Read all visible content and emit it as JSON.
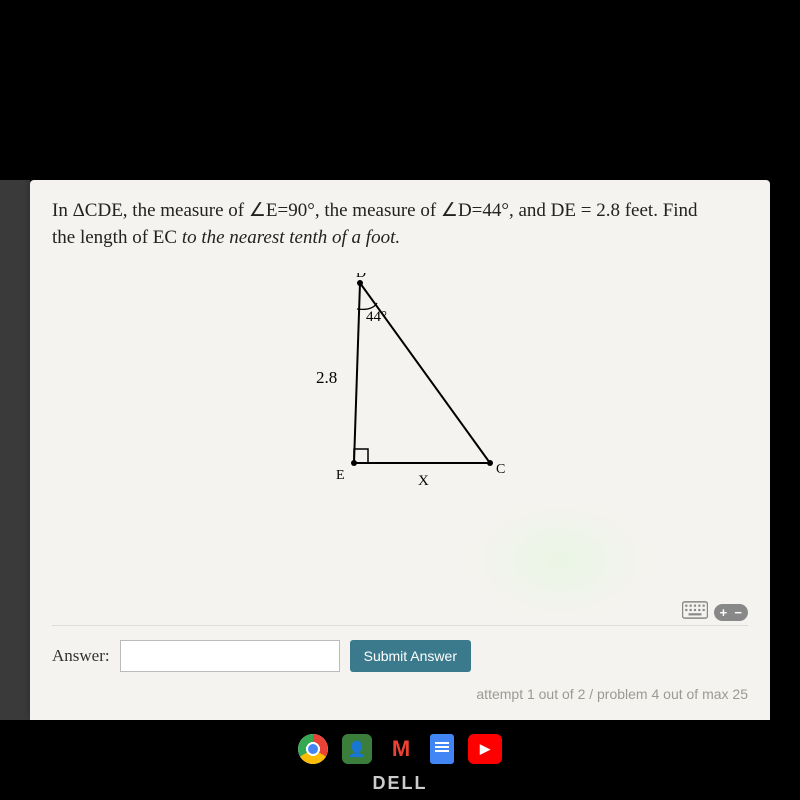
{
  "problem": {
    "line1_prefix": "In ΔCDE, the measure of ∠E=90°, the measure of ∠D=44°, and DE = 2.8 feet. Find",
    "line2_prefix": "the length of EC ",
    "line2_italic": "to the nearest tenth of a foot."
  },
  "triangle": {
    "vertex_D": "D",
    "vertex_E": "E",
    "vertex_C": "C",
    "angle_D_label": "44°",
    "side_DE_label": "2.8",
    "side_EC_label": "X",
    "D": [
      100,
      10
    ],
    "E": [
      94,
      190
    ],
    "C": [
      230,
      190
    ],
    "right_angle_size": 14,
    "stroke": "#000000",
    "stroke_width": 2,
    "label_fontsize": 15,
    "vertex_fontsize": 14
  },
  "answer": {
    "label": "Answer:",
    "value": "",
    "submit": "Submit Answer"
  },
  "footer": {
    "attempt": "attempt 1 out of 2 / problem 4 out of max 25"
  },
  "brand": "DELL",
  "colors": {
    "card_bg": "#f5f3ef",
    "submit_bg": "#3a7a8c",
    "submit_fg": "#ffffff",
    "attempt_fg": "#9a9a92"
  }
}
